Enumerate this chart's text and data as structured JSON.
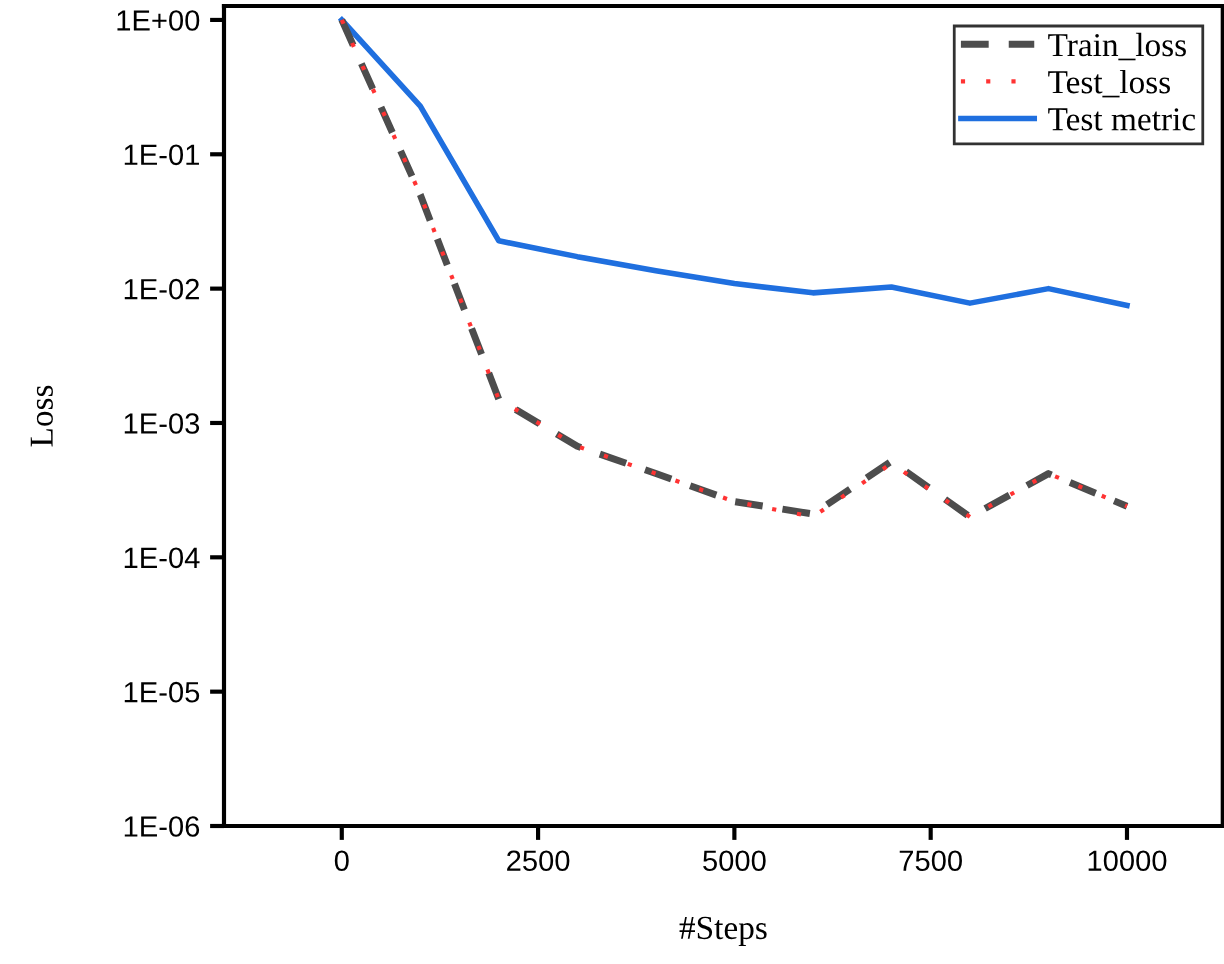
{
  "chart_data": {
    "type": "line",
    "xlabel": "#Steps",
    "ylabel": "Loss",
    "log": "y",
    "x": [
      0,
      1000,
      2000,
      3000,
      4000,
      5000,
      6000,
      7000,
      8000,
      9000,
      10000
    ],
    "series": [
      {
        "name": "Train_loss",
        "color": "#4d4d4d",
        "line_style": "dashed",
        "values": [
          1,
          0.05,
          0.0015,
          0.00067,
          0.00042,
          0.00026,
          0.00021,
          0.00052,
          0.0002,
          0.00042,
          0.00024
        ]
      },
      {
        "name": "Test_loss",
        "color": "#ff3333",
        "line_style": "dotted",
        "values": [
          1,
          0.05,
          0.0015,
          0.00067,
          0.00042,
          0.00026,
          0.0002,
          0.0005,
          0.0002,
          0.00042,
          0.00024
        ]
      },
      {
        "name": "Test metric",
        "color": "#1f6fdf",
        "line_style": "solid",
        "values": [
          1,
          0.228,
          0.0227,
          0.0173,
          0.0136,
          0.0109,
          0.0093,
          0.0103,
          0.0078,
          0.01,
          0.0075
        ]
      }
    ],
    "xlim": [
      -1500,
      11220
    ],
    "xticks": [
      0,
      2500,
      5000,
      7500,
      10000
    ],
    "ylim": [
      1e-06,
      1.27
    ],
    "yticks": [
      {
        "value": 1e-06,
        "label": "1E-06"
      },
      {
        "value": 1e-05,
        "label": "1E-05"
      },
      {
        "value": 0.0001,
        "label": "1E-04"
      },
      {
        "value": 0.001,
        "label": "1E-03"
      },
      {
        "value": 0.01,
        "label": "1E-02"
      },
      {
        "value": 0.1,
        "label": "1E-01"
      },
      {
        "value": 1,
        "label": "1E+00"
      }
    ],
    "legend": "top right",
    "grid": false
  }
}
